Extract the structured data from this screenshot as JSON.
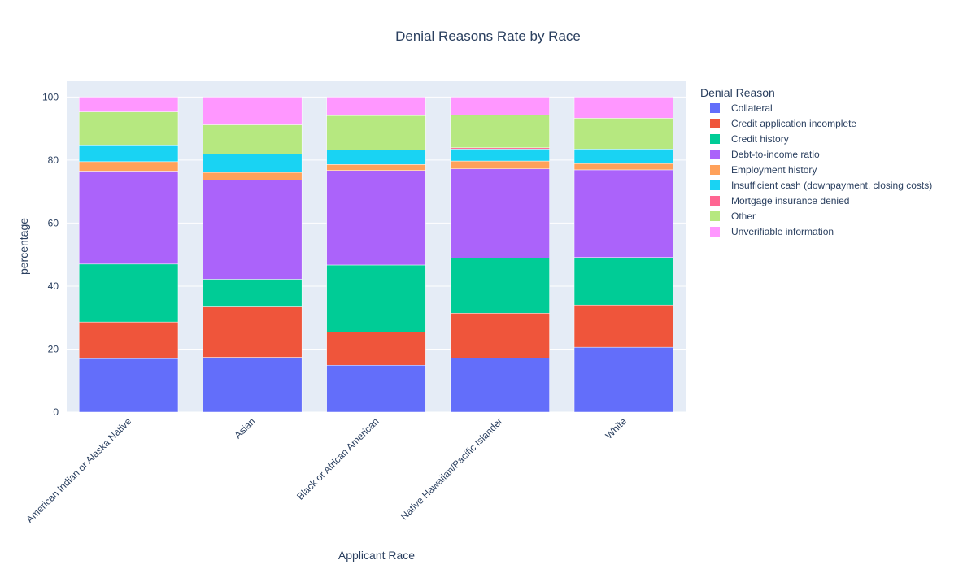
{
  "chart_data": {
    "type": "bar",
    "stacked": true,
    "title": "Denial Reasons Rate by Race",
    "xlabel": "Applicant Race",
    "ylabel": "percentage",
    "ylim": [
      0,
      105
    ],
    "yticks": [
      0,
      20,
      40,
      60,
      80,
      100
    ],
    "grid": true,
    "legend_title": "Denial Reason",
    "legend_position": "right",
    "plot_background": "#e5ecf6",
    "categories": [
      "American Indian or Alaska Native",
      "Asian",
      "Black or African American",
      "Native Hawaiian/Pacific Islander",
      "White"
    ],
    "series": [
      {
        "name": "Collateral",
        "color": "#636efa",
        "values": [
          17.0,
          17.4,
          14.9,
          17.2,
          20.6
        ]
      },
      {
        "name": "Credit application incomplete",
        "color": "#ef553b",
        "values": [
          11.6,
          16.0,
          10.5,
          14.2,
          13.4
        ]
      },
      {
        "name": "Credit history",
        "color": "#00cc96",
        "values": [
          18.4,
          8.8,
          21.3,
          17.5,
          15.1
        ]
      },
      {
        "name": "Debt-to-income ratio",
        "color": "#ab63fa",
        "values": [
          29.5,
          31.5,
          30.0,
          28.3,
          27.8
        ]
      },
      {
        "name": "Employment history",
        "color": "#ffa15a",
        "values": [
          3.0,
          2.4,
          1.9,
          2.5,
          2.0
        ]
      },
      {
        "name": "Insufficient cash (downpayment, closing costs)",
        "color": "#19d3f3",
        "values": [
          5.3,
          5.8,
          4.6,
          3.8,
          4.6
        ]
      },
      {
        "name": "Mortgage insurance denied",
        "color": "#ff6692",
        "values": [
          0.0,
          0.0,
          0.0,
          0.4,
          0.0
        ]
      },
      {
        "name": "Other",
        "color": "#b6e880",
        "values": [
          10.5,
          9.3,
          10.9,
          10.4,
          9.8
        ]
      },
      {
        "name": "Unverifiable information",
        "color": "#ff97ff",
        "values": [
          4.7,
          8.8,
          5.9,
          5.7,
          6.7
        ]
      }
    ]
  }
}
